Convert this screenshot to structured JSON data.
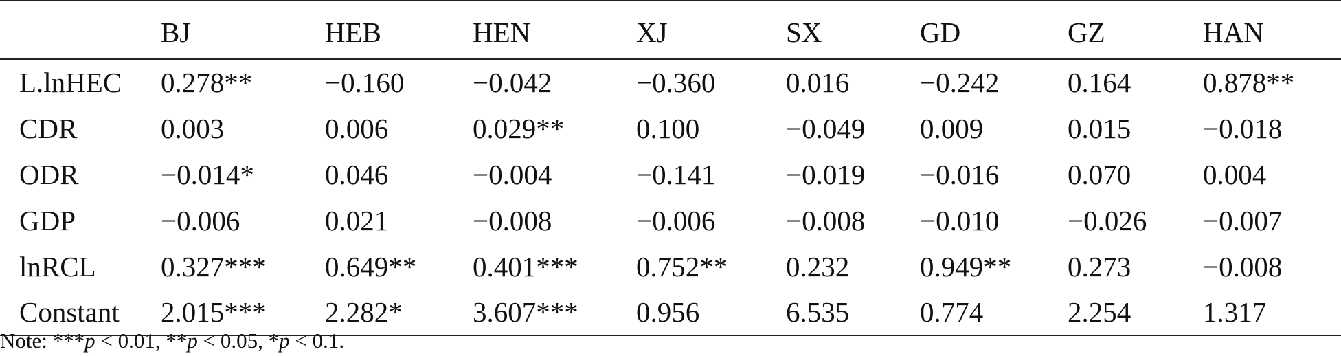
{
  "table": {
    "columns": [
      "",
      "BJ",
      "HEB",
      "HEN",
      "XJ",
      "SX",
      "GD",
      "GZ",
      "HAN"
    ],
    "rows": [
      [
        "L.lnHEC",
        "0.278**",
        "−0.160",
        "−0.042",
        "−0.360",
        "0.016",
        "−0.242",
        "0.164",
        "0.878**"
      ],
      [
        "CDR",
        "0.003",
        "0.006",
        "0.029**",
        "0.100",
        "−0.049",
        "0.009",
        "0.015",
        "−0.018"
      ],
      [
        "ODR",
        "−0.014*",
        "0.046",
        "−0.004",
        "−0.141",
        "−0.019",
        "−0.016",
        "0.070",
        "0.004"
      ],
      [
        "GDP",
        "−0.006",
        "0.021",
        "−0.008",
        "−0.006",
        "−0.008",
        "−0.010",
        "−0.026",
        "−0.007"
      ],
      [
        "lnRCL",
        "0.327***",
        "0.649**",
        "0.401***",
        "0.752**",
        "0.232",
        "0.949**",
        "0.273",
        "−0.008"
      ],
      [
        "Constant",
        "2.015***",
        "2.282*",
        "3.607***",
        "0.956",
        "6.535",
        "0.774",
        "2.254",
        "1.317"
      ]
    ]
  },
  "note": {
    "prefix": "Note: ***",
    "p1": "p",
    "t1": " < 0.01, **",
    "p2": "p",
    "t2": " < 0.05, *",
    "p3": "p",
    "t3": " < 0.1."
  }
}
